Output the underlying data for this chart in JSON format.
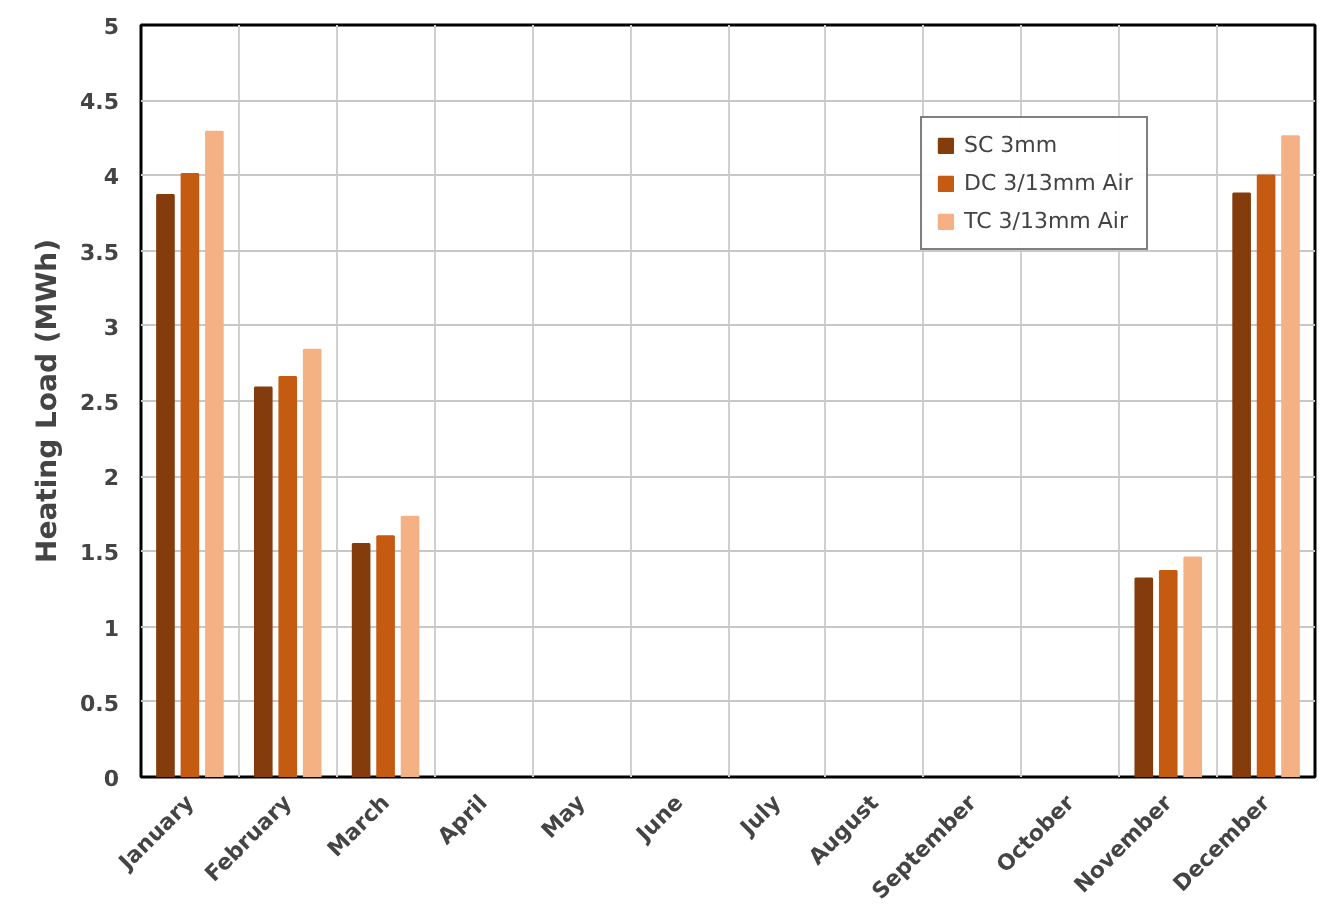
{
  "chart_data": {
    "type": "bar",
    "ylabel": "Heating Load (MWh)",
    "categories": [
      "January",
      "February",
      "March",
      "April",
      "May",
      "June",
      "July",
      "August",
      "September",
      "October",
      "November",
      "December"
    ],
    "series": [
      {
        "name": "SC 3mm",
        "color": "#843c0c",
        "values": [
          3.87,
          2.59,
          1.55,
          null,
          null,
          null,
          null,
          null,
          null,
          null,
          1.32,
          3.88
        ]
      },
      {
        "name": "DC 3/13mm Air",
        "color": "#c55a11",
        "values": [
          4.01,
          2.66,
          1.6,
          null,
          null,
          null,
          null,
          null,
          null,
          null,
          1.37,
          4.0
        ]
      },
      {
        "name": "TC 3/13mm Air",
        "color": "#f4b183",
        "values": [
          4.29,
          2.84,
          1.73,
          null,
          null,
          null,
          null,
          null,
          null,
          null,
          1.46,
          4.26
        ]
      }
    ],
    "ylim": [
      0,
      5
    ],
    "yticks": [
      0,
      0.5,
      1,
      1.5,
      2,
      2.5,
      3,
      3.5,
      4,
      4.5,
      5
    ],
    "grid": true,
    "legend": "top right"
  }
}
